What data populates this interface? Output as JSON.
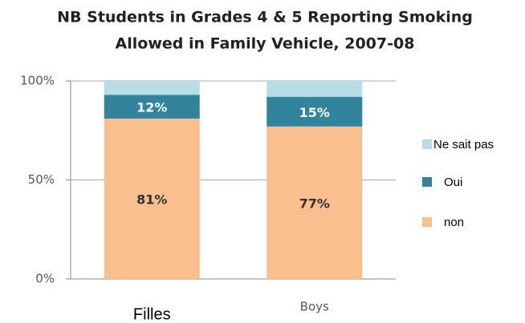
{
  "chart_data": {
    "type": "stacked_bar",
    "title": [
      "NB Students in Grades 4 & 5 Reporting Smoking",
      "Allowed in Family Vehicle, 2007-08"
    ],
    "categories": [
      "Filles",
      "Boys"
    ],
    "series": [
      {
        "name": "non",
        "color": "#f9bf8f",
        "values": [
          81,
          77
        ],
        "value_labels": [
          "81%",
          "77%"
        ]
      },
      {
        "name": "Oui",
        "color": "#31849b",
        "values": [
          12,
          15
        ],
        "value_labels": [
          "12%",
          "15%"
        ]
      },
      {
        "name": "Ne sait pas",
        "color": "#b7dde8",
        "values": [
          7,
          8
        ]
      }
    ],
    "ylim": [
      0,
      100
    ],
    "yticks": [
      {
        "value": 0,
        "label": "0%"
      },
      {
        "value": 50,
        "label": "50%"
      },
      {
        "value": 100,
        "label": "100%"
      }
    ],
    "grid": true,
    "legend": "right"
  }
}
